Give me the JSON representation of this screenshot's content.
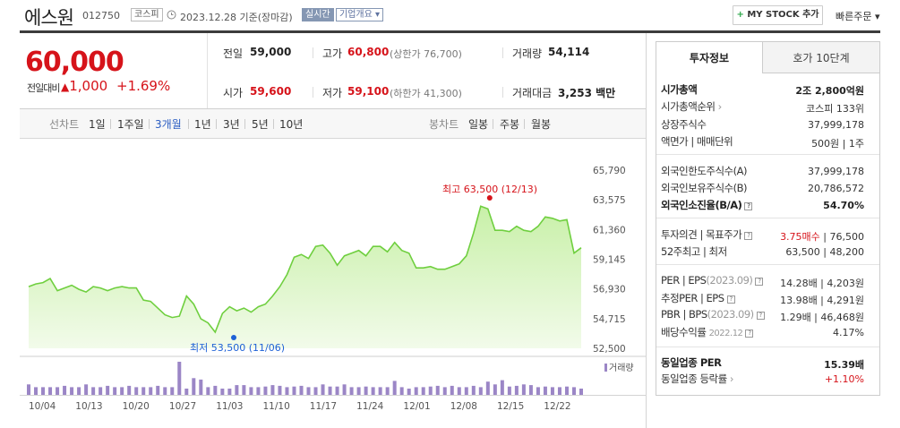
{
  "header": {
    "stock_name": "에스원",
    "stock_code": "012750",
    "market": "코스피",
    "date_text": "2023.12.28 기준(장마감)",
    "realtime_label": "실시간",
    "corp_info_label": "기업개요 ▾",
    "my_stock_label": "MY STOCK 추가",
    "quick_order_label": "빠른주문 ▾"
  },
  "price": {
    "current": "60,000",
    "change_label": "전일대비",
    "change_value": "1,000",
    "change_pct": "+1.69%"
  },
  "quote": {
    "prev_label": "전일",
    "prev_value": "59,000",
    "high_label": "고가",
    "high_value": "60,800",
    "upper_limit": "(상한가 76,700)",
    "volume_label": "거래량",
    "volume_value": "54,114",
    "open_label": "시가",
    "open_value": "59,600",
    "low_label": "저가",
    "low_value": "59,100",
    "lower_limit": "(하한가 41,300)",
    "amount_label": "거래대금",
    "amount_value": "3,253 백만"
  },
  "period_bar": {
    "line_chart_label": "선차트",
    "line_items": [
      "1일",
      "1주일",
      "3개월",
      "1년",
      "3년",
      "5년",
      "10년"
    ],
    "selected": "3개월",
    "candle_chart_label": "봉차트",
    "candle_items": [
      "일봉",
      "주봉",
      "월봉"
    ]
  },
  "chart_data": {
    "type": "area",
    "y_ticks": [
      "65,790",
      "63,575",
      "61,360",
      "59,145",
      "56,930",
      "54,715",
      "52,500"
    ],
    "ylim": [
      52500,
      65790
    ],
    "x_ticks": [
      "10/04",
      "10/13",
      "10/20",
      "10/27",
      "11/03",
      "11/10",
      "11/17",
      "11/24",
      "12/01",
      "12/08",
      "12/15",
      "12/22"
    ],
    "max_annotation": "최고 63,500 (12/13)",
    "min_annotation": "최저 53,500 (11/06)",
    "volume_label": "거래량",
    "prices": [
      57100,
      57300,
      57400,
      57700,
      56800,
      57000,
      57200,
      56900,
      56700,
      57100,
      57000,
      56800,
      57000,
      57100,
      57000,
      57000,
      56100,
      56000,
      55500,
      55000,
      54800,
      54900,
      56400,
      55800,
      54700,
      54400,
      53700,
      55100,
      55600,
      55300,
      55500,
      55200,
      55600,
      55800,
      56400,
      57100,
      58000,
      59300,
      59500,
      59200,
      60100,
      60200,
      59600,
      58700,
      59400,
      59600,
      59800,
      59400,
      60100,
      60100,
      59700,
      60400,
      59800,
      59600,
      58500,
      58500,
      58600,
      58400,
      58400,
      58600,
      58800,
      59400,
      61100,
      63100,
      62900,
      61300,
      61300,
      61200,
      61600,
      61300,
      61200,
      61600,
      62300,
      62200,
      62000,
      62100,
      59600,
      60000
    ],
    "volumes": [
      30,
      22,
      22,
      22,
      22,
      26,
      22,
      22,
      30,
      22,
      22,
      26,
      22,
      22,
      26,
      22,
      22,
      22,
      26,
      22,
      22,
      95,
      18,
      48,
      44,
      22,
      26,
      18,
      18,
      28,
      28,
      22,
      22,
      24,
      28,
      26,
      22,
      24,
      26,
      22,
      22,
      30,
      24,
      24,
      30,
      22,
      22,
      24,
      22,
      22,
      22,
      40,
      22,
      18,
      22,
      22,
      24,
      26,
      22,
      26,
      22,
      22,
      26,
      22,
      38,
      30,
      42,
      24,
      26,
      30,
      28,
      22,
      24,
      22,
      22,
      24,
      22,
      18
    ]
  },
  "invest_info": {
    "tab_active": "투자정보",
    "tab_other": "호가 10단계",
    "rows1": [
      {
        "label": "시가총액",
        "value": "2조 2,800억원"
      },
      {
        "label": "시가총액순위",
        "value": "코스피 133위"
      },
      {
        "label": "상장주식수",
        "value": "37,999,178"
      },
      {
        "label": "액면가 | 매매단위",
        "value": "500원 | 1주"
      }
    ],
    "rows2": [
      {
        "label": "외국인한도주식수(A)",
        "value": "37,999,178"
      },
      {
        "label": "외국인보유주식수(B)",
        "value": "20,786,572"
      },
      {
        "label": "외국인소진율(B/A)",
        "value": "54.70%"
      }
    ],
    "rows3": [
      {
        "label": "투자의견 | 목표주가",
        "value_red": "3.75매수",
        "value": "76,500"
      },
      {
        "label": "52주최고 | 최저",
        "value": "63,500 | 48,200"
      }
    ],
    "rows4": [
      {
        "label": "PER | EPS",
        "sub": "(2023.09)",
        "value": "14.28배 | 4,203원"
      },
      {
        "label": "추정PER | EPS",
        "value": "13.98배 | 4,291원"
      },
      {
        "label": "PBR | BPS",
        "sub": "(2023.09)",
        "value": "1.29배 | 46,468원"
      },
      {
        "label": "배당수익률",
        "sub": "2022.12",
        "value": "4.17%"
      }
    ],
    "rows5": [
      {
        "label": "동일업종 PER",
        "value": "15.39배"
      },
      {
        "label": "동일업종 등락률",
        "value": "+1.10%"
      }
    ]
  }
}
